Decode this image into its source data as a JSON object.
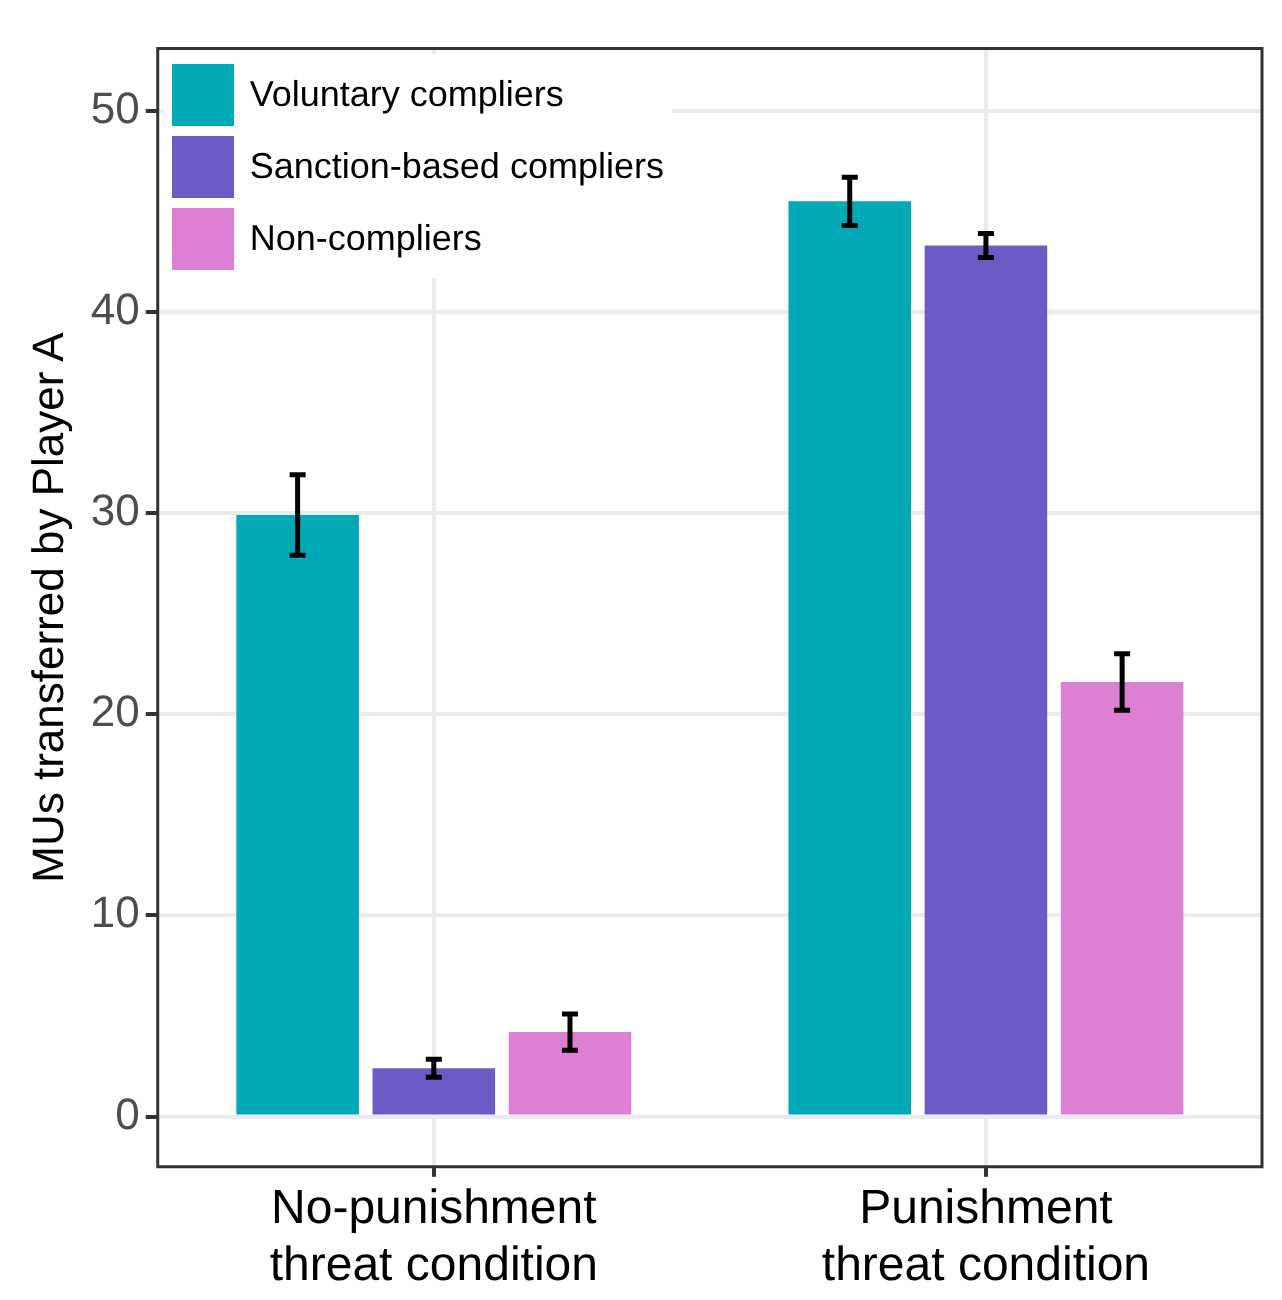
{
  "chart_data": {
    "type": "bar",
    "ylabel": "MUs transferred by Player A",
    "categories": [
      "No-punishment\nthreat condition",
      "Punishment\nthreat condition"
    ],
    "series": [
      {
        "name": "Voluntary compliers",
        "color": "#00a9b5",
        "values": [
          29.9,
          45.5
        ],
        "errors": [
          2.0,
          1.2
        ]
      },
      {
        "name": "Sanction-based compliers",
        "color": "#6a5bc5",
        "values": [
          2.4,
          43.3
        ],
        "errors": [
          0.45,
          0.6
        ]
      },
      {
        "name": "Non-compliers",
        "color": "#dd7fd2",
        "values": [
          4.2,
          21.6
        ],
        "errors": [
          0.9,
          1.4
        ]
      }
    ],
    "ylim": [
      -2.5,
      53.1
    ],
    "yticks": [
      0,
      10,
      20,
      30,
      40,
      50
    ],
    "grid": true,
    "legend": "top left"
  }
}
